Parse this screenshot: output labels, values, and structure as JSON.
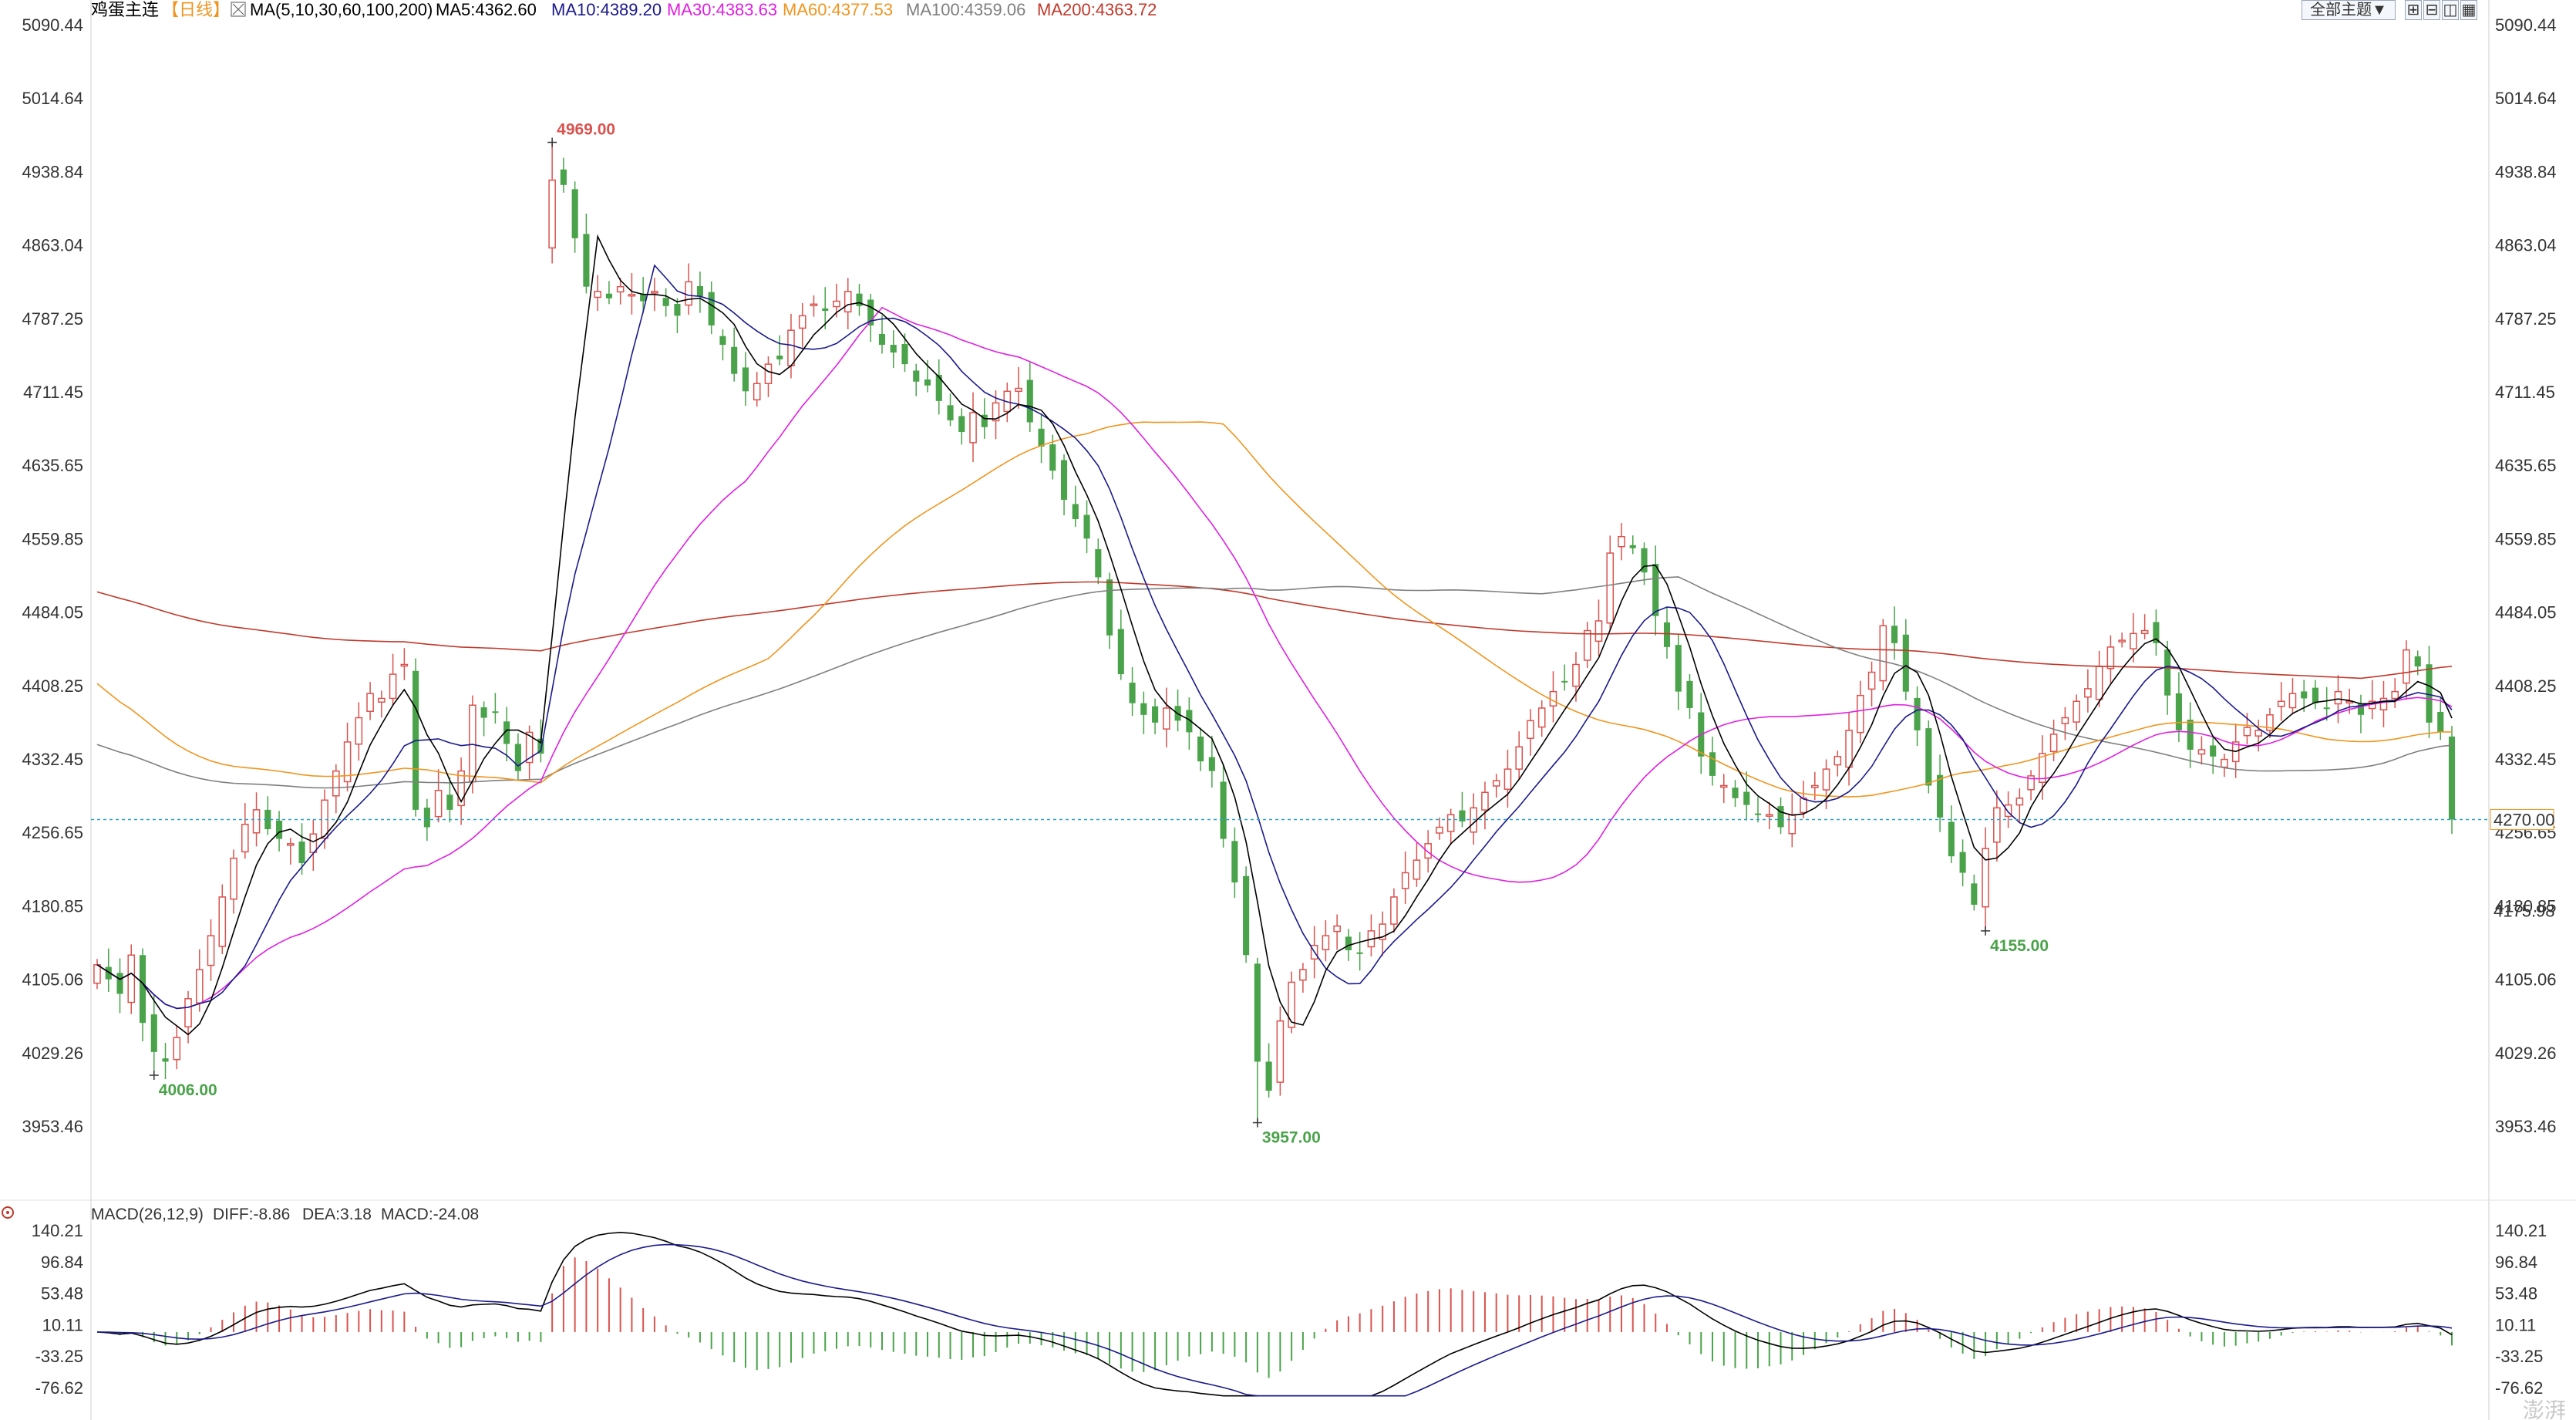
{
  "header": {
    "symbol": "鸡蛋主连",
    "period": "【日线】",
    "ma_label": "MA(5,10,30,60,100,200)",
    "ma_values": [
      {
        "text": "MA5:4362.60",
        "color": "#000000"
      },
      {
        "text": "MA10:4389.20",
        "color": "#1a1a8c"
      },
      {
        "text": "MA30:4383.63",
        "color": "#e020e0"
      },
      {
        "text": "MA60:4377.53",
        "color": "#f0951e"
      },
      {
        "text": "MA100:4359.06",
        "color": "#7f7f7f"
      },
      {
        "text": "MA200:4363.72",
        "color": "#c0392b"
      }
    ]
  },
  "toolbar": {
    "theme_label": "全部主题▼",
    "icons": [
      "grid-1-icon",
      "grid-2-icon",
      "grid-3-icon",
      "grid-4-icon"
    ]
  },
  "colors": {
    "up": "#d9534f",
    "down": "#4aa34a",
    "ma5": "#000000",
    "ma10": "#1a1a8c",
    "ma30": "#e020e0",
    "ma60": "#f0951e",
    "ma100": "#7f7f7f",
    "ma200": "#c0392b",
    "current": "#2aa3c8"
  },
  "watermark": "澎湃",
  "chart_data": [
    {
      "type": "candlestick",
      "title": "鸡蛋主连【日线】",
      "y_ticks": [
        "5090.44",
        "5014.64",
        "4938.84",
        "4863.04",
        "4787.25",
        "4711.45",
        "4635.65",
        "4559.85",
        "4484.05",
        "4408.25",
        "4332.45",
        "4256.65",
        "4180.85",
        "4105.06",
        "4029.26",
        "3953.46"
      ],
      "ylim": [
        3920,
        5090.44
      ],
      "current_price": "4270.00",
      "right_marker": "4175.98",
      "extremes": [
        {
          "label": "4969.00",
          "index": 40,
          "value": 4969,
          "kind": "high"
        },
        {
          "label": "4006.00",
          "index": 5,
          "value": 4006,
          "kind": "low"
        },
        {
          "label": "3957.00",
          "index": 102,
          "value": 3957,
          "kind": "low"
        },
        {
          "label": "4155.00",
          "index": 166,
          "value": 4155,
          "kind": "low"
        }
      ],
      "close": [
        4120,
        4105,
        4090,
        4130,
        4060,
        4030,
        4020,
        4045,
        4085,
        4115,
        4150,
        4190,
        4230,
        4265,
        4280,
        4260,
        4250,
        4245,
        4225,
        4255,
        4290,
        4320,
        4350,
        4375,
        4400,
        4395,
        4420,
        4430,
        4280,
        4262,
        4300,
        4280,
        4320,
        4388,
        4375,
        4380,
        4348,
        4320,
        4360,
        4338,
        4930,
        4925,
        4870,
        4820,
        4815,
        4808,
        4820,
        4812,
        4805,
        4815,
        4800,
        4790,
        4825,
        4810,
        4780,
        4760,
        4730,
        4712,
        4720,
        4740,
        4745,
        4775,
        4790,
        4802,
        4795,
        4805,
        4815,
        4800,
        4780,
        4760,
        4752,
        4740,
        4722,
        4718,
        4702,
        4682,
        4670,
        4690,
        4675,
        4700,
        4712,
        4715,
        4680,
        4655,
        4630,
        4600,
        4580,
        4560,
        4520,
        4460,
        4420,
        4390,
        4378,
        4370,
        4385,
        4372,
        4360,
        4330,
        4320,
        4250,
        4205,
        4130,
        4020,
        3990,
        4062,
        4102,
        4115,
        4140,
        4150,
        4160,
        4135,
        4132,
        4155,
        4162,
        4190,
        4215,
        4228,
        4245,
        4262,
        4275,
        4268,
        4282,
        4298,
        4310,
        4322,
        4345,
        4372,
        4385,
        4402,
        4412,
        4430,
        4465,
        4475,
        4545,
        4562,
        4550,
        4525,
        4480,
        4448,
        4402,
        4385,
        4335,
        4315,
        4305,
        4292,
        4285,
        4275,
        4275,
        4262,
        4275,
        4292,
        4305,
        4322,
        4335,
        4362,
        4398,
        4422,
        4470,
        4452,
        4402,
        4362,
        4305,
        4272,
        4232,
        4215,
        4182,
        4240,
        4282,
        4285,
        4292,
        4315,
        4338,
        4358,
        4375,
        4392,
        4405,
        4428,
        4448,
        4455,
        4462,
        4465,
        4452,
        4398,
        4362,
        4342,
        4342,
        4335,
        4332,
        4350,
        4365,
        4362,
        4378,
        4392,
        4400,
        4395,
        4390,
        4385,
        4402,
        4392,
        4378,
        4392,
        4395,
        4402,
        4445,
        4428,
        4370,
        4360,
        4270
      ]
    },
    {
      "type": "macd_histogram",
      "title": "MACD(26,12,9)",
      "values_text": [
        {
          "text": "MACD(26,12,9)",
          "color": "#333333"
        },
        {
          "text": "DIFF:-8.86",
          "color": "#000000"
        },
        {
          "text": "DEA:3.18",
          "color": "#1a1a8c"
        },
        {
          "text": "MACD:-24.08",
          "color": "#e020e0"
        }
      ],
      "y_ticks": [
        "140.21",
        "96.84",
        "53.48",
        "10.11",
        "-33.25",
        "-76.62"
      ],
      "ylim": [
        -90,
        150
      ]
    }
  ]
}
